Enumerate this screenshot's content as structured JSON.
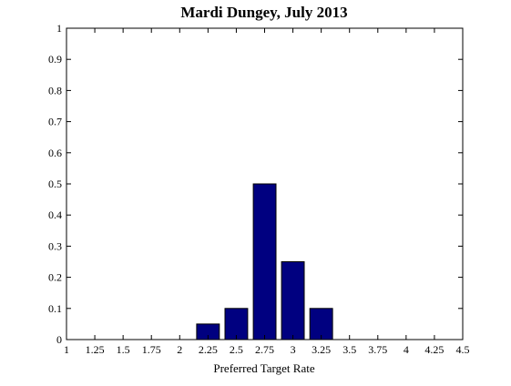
{
  "chart_data": {
    "type": "bar",
    "title": "Mardi Dungey, July 2013",
    "xlabel": "Preferred Target Rate",
    "ylabel": "",
    "xlim": [
      1,
      4.5
    ],
    "ylim": [
      0,
      1
    ],
    "xticks": [
      "1",
      "1.25",
      "1.5",
      "1.75",
      "2",
      "2.25",
      "2.5",
      "2.75",
      "3",
      "3.25",
      "3.5",
      "3.75",
      "4",
      "4.25",
      "4.5"
    ],
    "yticks": [
      "0",
      "0.1",
      "0.2",
      "0.3",
      "0.4",
      "0.5",
      "0.6",
      "0.7",
      "0.8",
      "0.9",
      "1"
    ],
    "categories": [
      "1.25",
      "1.5",
      "1.75",
      "2",
      "2.25",
      "2.5",
      "2.75",
      "3",
      "3.25",
      "3.5",
      "3.75",
      "4",
      "4.25"
    ],
    "values": [
      0,
      0,
      0,
      0,
      0.05,
      0.1,
      0.5,
      0.25,
      0.1,
      0,
      0,
      0,
      0
    ],
    "bar_color": "#000080",
    "grid": false,
    "legend": "none"
  }
}
